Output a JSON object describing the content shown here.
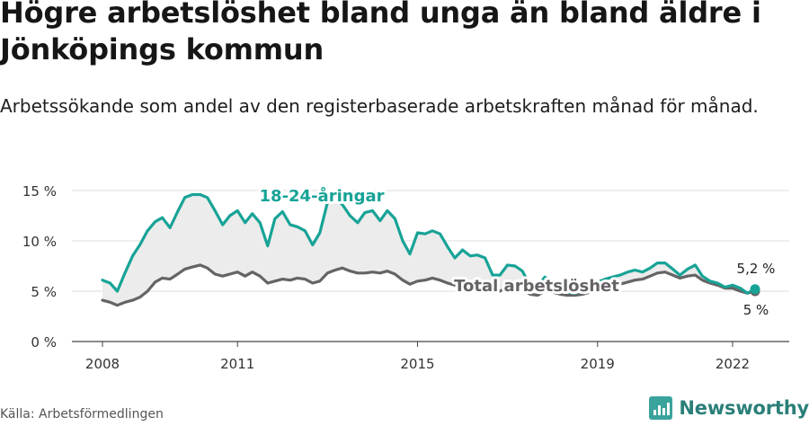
{
  "title": "Högre arbetslöshet bland unga än bland äldre i Jönköpings kommun",
  "subtitle": "Arbetssökande som andel av den registerbaserade arbetskraften månad för månad.",
  "source": "Källa: Arbetsförmedlingen",
  "brand": {
    "name": "Newsworthy",
    "icon": "bar-chart-logo-icon"
  },
  "colors": {
    "youth": "#18a397",
    "total": "#666366",
    "band": "#ececec",
    "grid": "#dddddd"
  },
  "chart_data": {
    "type": "line",
    "x_range": [
      2008,
      2022.5
    ],
    "ylim": [
      0,
      15
    ],
    "y_ticks": [
      0,
      5,
      10,
      15
    ],
    "y_tick_labels": [
      "0 %",
      "5 %",
      "10 %",
      "15 %"
    ],
    "x_ticks": [
      2008,
      2011,
      2015,
      2019,
      2022
    ],
    "x_tick_labels": [
      "2008",
      "2011",
      "2015",
      "2019",
      "2022"
    ],
    "grid": true,
    "shaded_between_series": true,
    "series": [
      {
        "name": "18-24-åringar",
        "color": "#18a397",
        "points": [
          [
            2008.0,
            6.1
          ],
          [
            2008.17,
            5.8
          ],
          [
            2008.33,
            5.0
          ],
          [
            2008.5,
            6.8
          ],
          [
            2008.67,
            8.5
          ],
          [
            2008.83,
            9.6
          ],
          [
            2009.0,
            11.0
          ],
          [
            2009.17,
            11.9
          ],
          [
            2009.33,
            12.3
          ],
          [
            2009.5,
            11.3
          ],
          [
            2009.67,
            12.9
          ],
          [
            2009.83,
            14.3
          ],
          [
            2010.0,
            14.6
          ],
          [
            2010.17,
            14.6
          ],
          [
            2010.33,
            14.3
          ],
          [
            2010.5,
            13.0
          ],
          [
            2010.67,
            11.6
          ],
          [
            2010.83,
            12.5
          ],
          [
            2011.0,
            13.0
          ],
          [
            2011.17,
            11.8
          ],
          [
            2011.33,
            12.7
          ],
          [
            2011.5,
            11.8
          ],
          [
            2011.67,
            9.5
          ],
          [
            2011.83,
            12.2
          ],
          [
            2012.0,
            12.9
          ],
          [
            2012.17,
            11.6
          ],
          [
            2012.33,
            11.4
          ],
          [
            2012.5,
            11.0
          ],
          [
            2012.67,
            9.6
          ],
          [
            2012.83,
            10.8
          ],
          [
            2013.0,
            13.8
          ],
          [
            2013.17,
            14.2
          ],
          [
            2013.33,
            13.6
          ],
          [
            2013.5,
            12.5
          ],
          [
            2013.67,
            11.8
          ],
          [
            2013.83,
            12.8
          ],
          [
            2014.0,
            13.0
          ],
          [
            2014.17,
            12.0
          ],
          [
            2014.33,
            13.0
          ],
          [
            2014.5,
            12.2
          ],
          [
            2014.67,
            10.0
          ],
          [
            2014.83,
            8.7
          ],
          [
            2015.0,
            10.8
          ],
          [
            2015.17,
            10.7
          ],
          [
            2015.33,
            11.0
          ],
          [
            2015.5,
            10.7
          ],
          [
            2015.67,
            9.4
          ],
          [
            2015.83,
            8.3
          ],
          [
            2016.0,
            9.1
          ],
          [
            2016.17,
            8.5
          ],
          [
            2016.33,
            8.6
          ],
          [
            2016.5,
            8.3
          ],
          [
            2016.67,
            6.6
          ],
          [
            2016.83,
            6.6
          ],
          [
            2017.0,
            7.6
          ],
          [
            2017.17,
            7.5
          ],
          [
            2017.33,
            7.0
          ],
          [
            2017.5,
            5.6
          ],
          [
            2017.67,
            5.5
          ],
          [
            2017.83,
            6.4
          ],
          [
            2018.0,
            5.9
          ],
          [
            2018.17,
            5.3
          ],
          [
            2018.33,
            4.9
          ],
          [
            2018.5,
            4.8
          ],
          [
            2018.67,
            5.1
          ],
          [
            2018.83,
            5.6
          ],
          [
            2019.0,
            5.9
          ],
          [
            2019.17,
            6.2
          ],
          [
            2019.33,
            6.4
          ],
          [
            2019.5,
            6.6
          ],
          [
            2019.67,
            6.9
          ],
          [
            2019.83,
            7.1
          ],
          [
            2020.0,
            6.9
          ],
          [
            2020.17,
            7.3
          ],
          [
            2020.33,
            7.8
          ],
          [
            2020.5,
            7.8
          ],
          [
            2020.67,
            7.2
          ],
          [
            2020.83,
            6.6
          ],
          [
            2021.0,
            7.2
          ],
          [
            2021.17,
            7.6
          ],
          [
            2021.33,
            6.5
          ],
          [
            2021.5,
            6.0
          ],
          [
            2021.67,
            5.8
          ],
          [
            2021.83,
            5.4
          ],
          [
            2022.0,
            5.6
          ],
          [
            2022.17,
            5.3
          ],
          [
            2022.33,
            4.8
          ],
          [
            2022.5,
            5.2
          ]
        ]
      },
      {
        "name": "Total arbetslöshet",
        "color": "#666366",
        "points": [
          [
            2008.0,
            4.1
          ],
          [
            2008.17,
            3.9
          ],
          [
            2008.33,
            3.6
          ],
          [
            2008.5,
            3.9
          ],
          [
            2008.67,
            4.1
          ],
          [
            2008.83,
            4.4
          ],
          [
            2009.0,
            5.0
          ],
          [
            2009.17,
            5.9
          ],
          [
            2009.33,
            6.3
          ],
          [
            2009.5,
            6.2
          ],
          [
            2009.67,
            6.7
          ],
          [
            2009.83,
            7.2
          ],
          [
            2010.0,
            7.4
          ],
          [
            2010.17,
            7.6
          ],
          [
            2010.33,
            7.3
          ],
          [
            2010.5,
            6.7
          ],
          [
            2010.67,
            6.5
          ],
          [
            2010.83,
            6.7
          ],
          [
            2011.0,
            6.9
          ],
          [
            2011.17,
            6.5
          ],
          [
            2011.33,
            6.9
          ],
          [
            2011.5,
            6.5
          ],
          [
            2011.67,
            5.8
          ],
          [
            2011.83,
            6.0
          ],
          [
            2012.0,
            6.2
          ],
          [
            2012.17,
            6.1
          ],
          [
            2012.33,
            6.3
          ],
          [
            2012.5,
            6.2
          ],
          [
            2012.67,
            5.8
          ],
          [
            2012.83,
            6.0
          ],
          [
            2013.0,
            6.8
          ],
          [
            2013.17,
            7.1
          ],
          [
            2013.33,
            7.3
          ],
          [
            2013.5,
            7.0
          ],
          [
            2013.67,
            6.8
          ],
          [
            2013.83,
            6.8
          ],
          [
            2014.0,
            6.9
          ],
          [
            2014.17,
            6.8
          ],
          [
            2014.33,
            7.0
          ],
          [
            2014.5,
            6.7
          ],
          [
            2014.67,
            6.1
          ],
          [
            2014.83,
            5.7
          ],
          [
            2015.0,
            6.0
          ],
          [
            2015.17,
            6.1
          ],
          [
            2015.33,
            6.3
          ],
          [
            2015.5,
            6.1
          ],
          [
            2015.67,
            5.8
          ],
          [
            2015.83,
            5.6
          ],
          [
            2016.0,
            5.9
          ],
          [
            2016.17,
            5.7
          ],
          [
            2016.33,
            5.8
          ],
          [
            2016.5,
            5.7
          ],
          [
            2016.67,
            5.2
          ],
          [
            2016.83,
            5.0
          ],
          [
            2017.0,
            5.4
          ],
          [
            2017.17,
            5.3
          ],
          [
            2017.33,
            5.2
          ],
          [
            2017.5,
            4.7
          ],
          [
            2017.67,
            4.6
          ],
          [
            2017.83,
            5.0
          ],
          [
            2018.0,
            4.9
          ],
          [
            2018.17,
            4.7
          ],
          [
            2018.33,
            4.6
          ],
          [
            2018.5,
            4.6
          ],
          [
            2018.67,
            4.7
          ],
          [
            2018.83,
            4.9
          ],
          [
            2019.0,
            5.1
          ],
          [
            2019.17,
            5.3
          ],
          [
            2019.33,
            5.5
          ],
          [
            2019.5,
            5.7
          ],
          [
            2019.67,
            5.9
          ],
          [
            2019.83,
            6.1
          ],
          [
            2020.0,
            6.2
          ],
          [
            2020.17,
            6.5
          ],
          [
            2020.33,
            6.8
          ],
          [
            2020.5,
            6.9
          ],
          [
            2020.67,
            6.6
          ],
          [
            2020.83,
            6.3
          ],
          [
            2021.0,
            6.5
          ],
          [
            2021.17,
            6.6
          ],
          [
            2021.33,
            6.1
          ],
          [
            2021.5,
            5.8
          ],
          [
            2021.67,
            5.6
          ],
          [
            2021.83,
            5.3
          ],
          [
            2022.0,
            5.3
          ],
          [
            2022.17,
            5.0
          ],
          [
            2022.33,
            4.8
          ],
          [
            2022.5,
            5.0
          ]
        ]
      }
    ],
    "annotations": {
      "youth_label": "18-24-åringar",
      "total_label": "Total arbetslöshet",
      "youth_end_label": "5,2 %",
      "total_end_label": "5 %"
    }
  }
}
